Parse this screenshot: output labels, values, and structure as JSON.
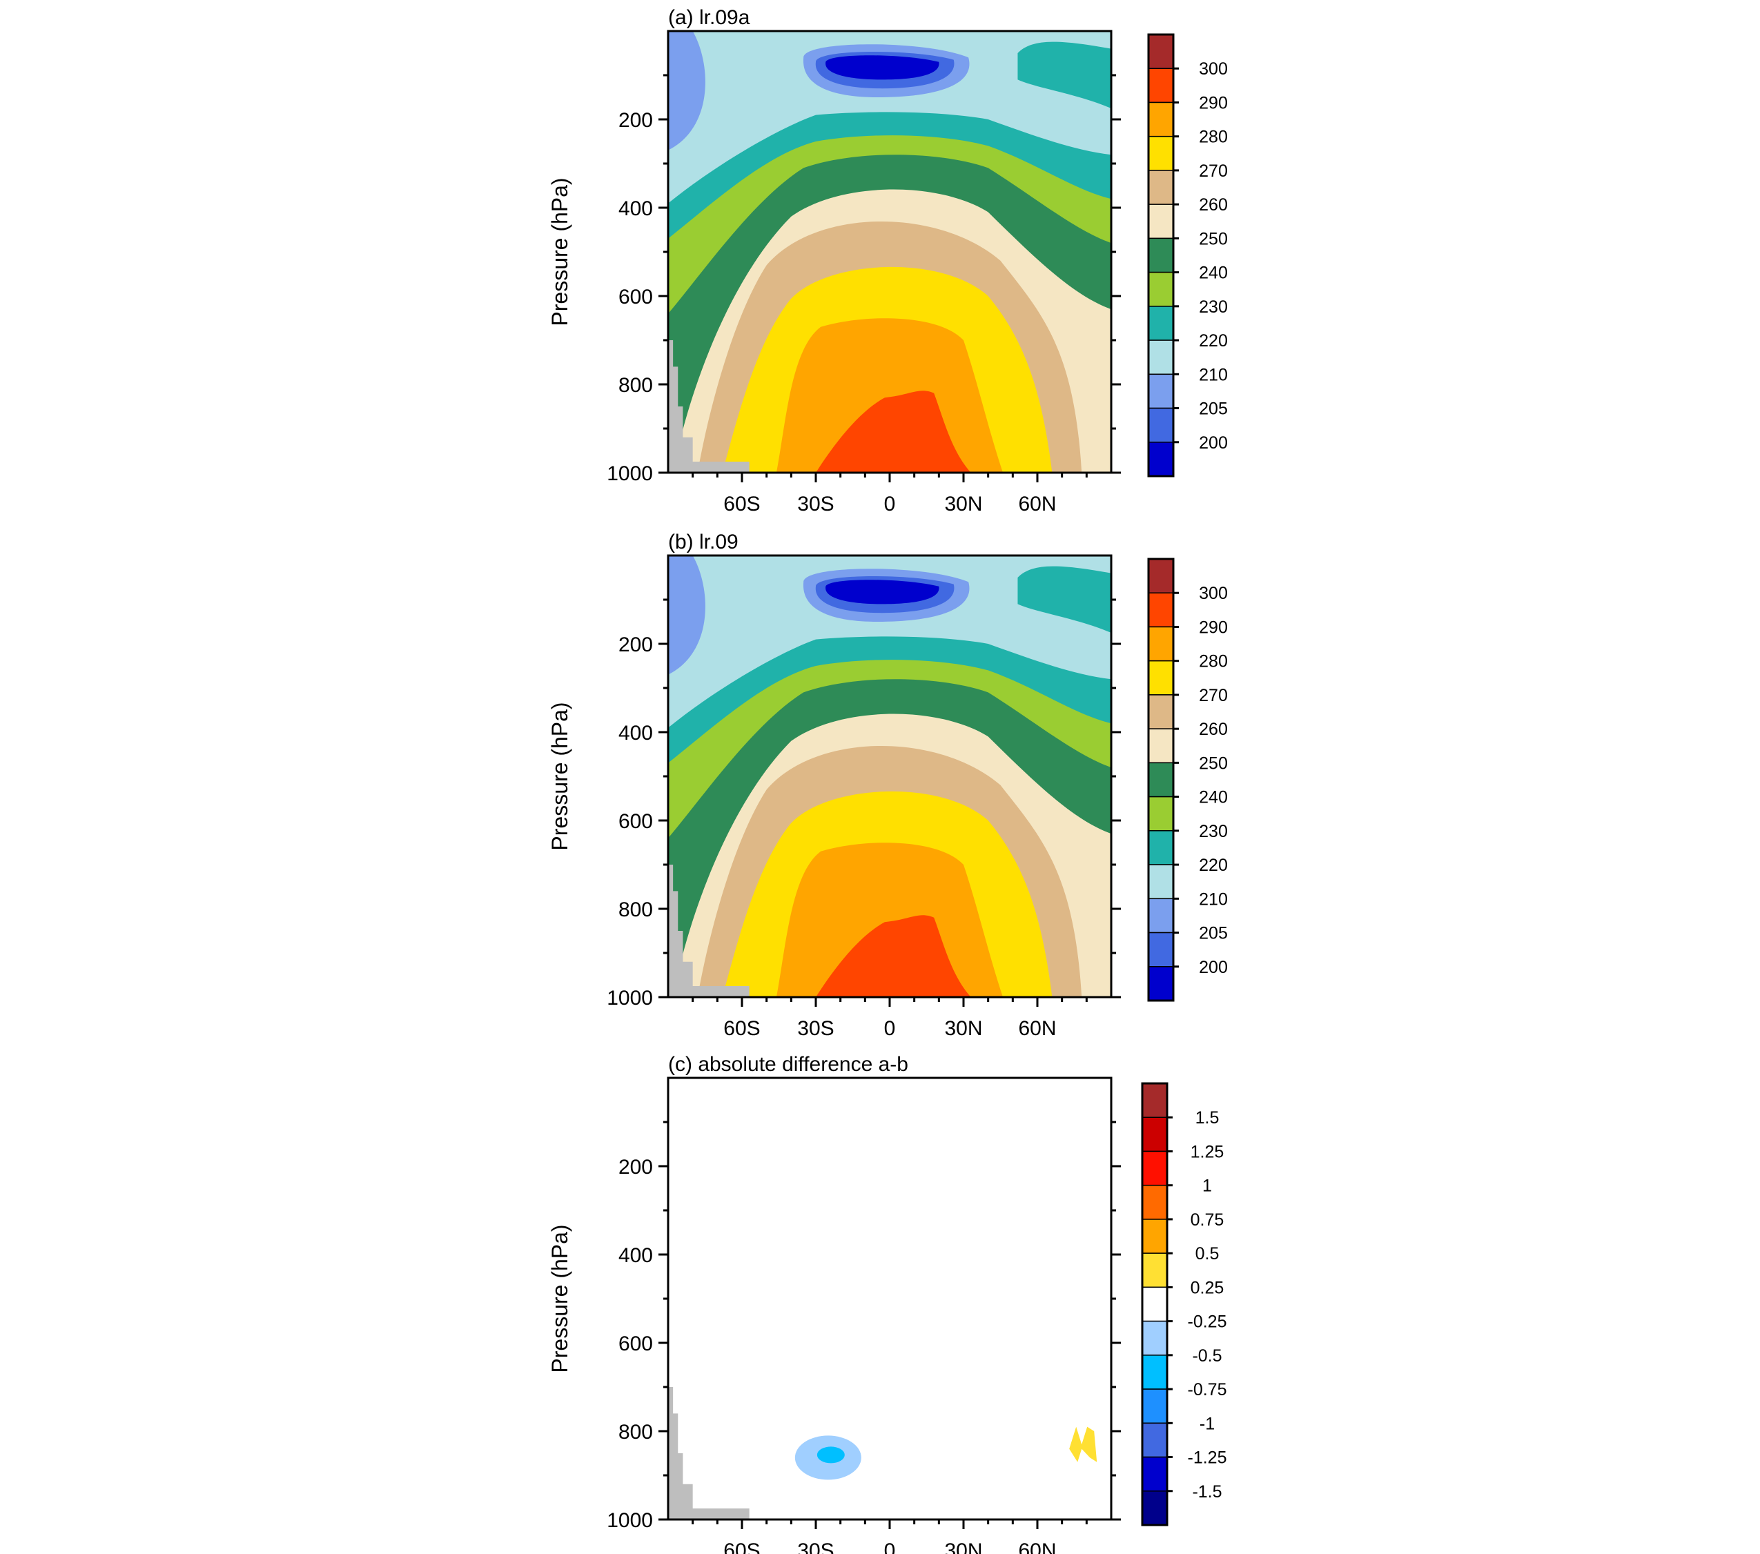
{
  "chart_data": [
    {
      "id": "a",
      "type": "heatmap",
      "title": "(a) lr.09a",
      "ylabel": "Pressure (hPa)",
      "xlabel": "",
      "y_ticks": [
        "200",
        "400",
        "600",
        "800",
        "1000"
      ],
      "x_ticks": [
        "60S",
        "30S",
        "0",
        "30N",
        "60N"
      ],
      "colorbar": {
        "levels": [
          "300",
          "290",
          "280",
          "270",
          "260",
          "250",
          "240",
          "230",
          "220",
          "210",
          "205",
          "200"
        ],
        "colors": [
          "#A52A2A",
          "#FF4500",
          "#FFA500",
          "#FFE000",
          "#DEB887",
          "#F5E6C3",
          "#2E8B57",
          "#9ACD32",
          "#20B2AA",
          "#B0E0E6",
          "#7B9FEE",
          "#4169E1",
          "#0000CD"
        ]
      },
      "mask_color": "#BEBEBE"
    },
    {
      "id": "b",
      "type": "heatmap",
      "title": "(b) lr.09",
      "ylabel": "Pressure (hPa)",
      "xlabel": "",
      "y_ticks": [
        "200",
        "400",
        "600",
        "800",
        "1000"
      ],
      "x_ticks": [
        "60S",
        "30S",
        "0",
        "30N",
        "60N"
      ],
      "colorbar": {
        "levels": [
          "300",
          "290",
          "280",
          "270",
          "260",
          "250",
          "240",
          "230",
          "220",
          "210",
          "205",
          "200"
        ],
        "colors": [
          "#A52A2A",
          "#FF4500",
          "#FFA500",
          "#FFE000",
          "#DEB887",
          "#F5E6C3",
          "#2E8B57",
          "#9ACD32",
          "#20B2AA",
          "#B0E0E6",
          "#7B9FEE",
          "#4169E1",
          "#0000CD"
        ]
      },
      "mask_color": "#BEBEBE"
    },
    {
      "id": "c",
      "type": "heatmap",
      "title": "(c) absolute difference a-b",
      "ylabel": "Pressure (hPa)",
      "xlabel": "",
      "y_ticks": [
        "200",
        "400",
        "600",
        "800",
        "1000"
      ],
      "x_ticks": [
        "60S",
        "30S",
        "0",
        "30N",
        "60N"
      ],
      "colorbar": {
        "levels": [
          "1.5",
          "1.25",
          "1",
          "0.75",
          "0.5",
          "0.25",
          "-0.25",
          "-0.5",
          "-0.75",
          "-1",
          "-1.25",
          "-1.5"
        ],
        "colors": [
          "#A52A2A",
          "#CC0000",
          "#FF1000",
          "#FF6A00",
          "#FFA500",
          "#FFE033",
          "#FFFFFF",
          "#A0CFFF",
          "#00BFFF",
          "#1E90FF",
          "#4169E1",
          "#0000CD",
          "#00008B"
        ]
      },
      "mask_color": "#BEBEBE",
      "features": [
        {
          "kind": "negative anomaly",
          "lat": -25,
          "pressure_hPa": 860,
          "class": "-0.25 to -0.75"
        },
        {
          "kind": "positive anomaly",
          "lat": 78,
          "pressure_hPa": 830,
          "class": "0.25 to 0.5"
        }
      ]
    }
  ]
}
